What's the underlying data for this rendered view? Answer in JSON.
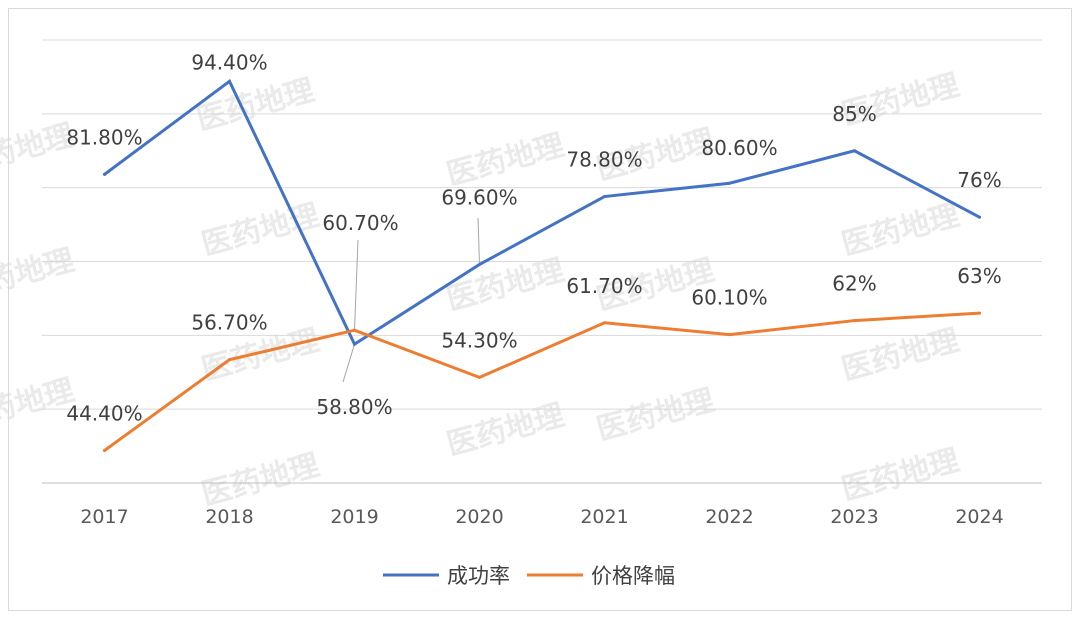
{
  "chart_data": {
    "type": "line",
    "categories": [
      "2017",
      "2018",
      "2019",
      "2020",
      "2021",
      "2022",
      "2023",
      "2024"
    ],
    "series": [
      {
        "name": "成功率",
        "color": "#4472c4",
        "values": [
          81.8,
          94.4,
          58.8,
          69.6,
          78.8,
          80.6,
          85,
          76
        ],
        "labels": [
          "81.80%",
          "94.40%",
          "58.80%",
          "69.60%",
          "78.80%",
          "80.60%",
          "85%",
          "76%"
        ]
      },
      {
        "name": "价格降幅",
        "color": "#ed7d31",
        "values": [
          44.4,
          56.7,
          60.7,
          54.3,
          61.7,
          60.1,
          62,
          63
        ],
        "labels": [
          "44.40%",
          "56.70%",
          "60.70%",
          "54.30%",
          "61.70%",
          "60.10%",
          "62%",
          "63%"
        ]
      }
    ],
    "ylim": [
      40,
      100
    ],
    "grid": true,
    "legend_position": "bottom",
    "watermark": "医药地理"
  }
}
